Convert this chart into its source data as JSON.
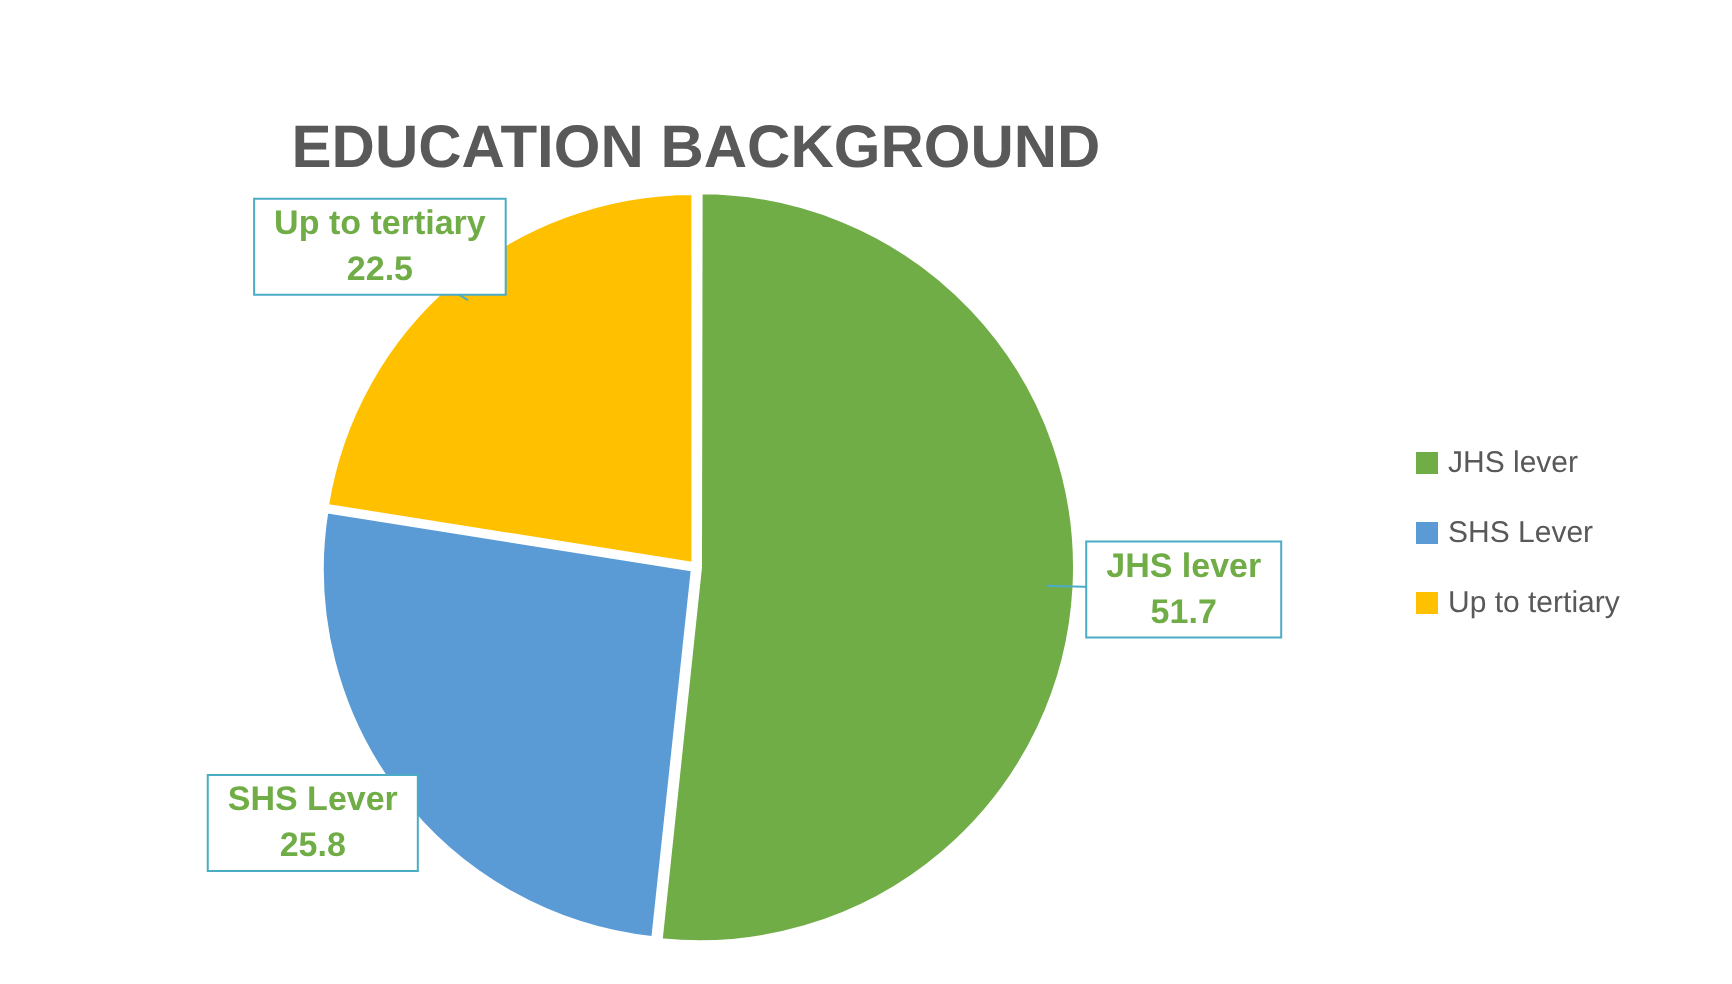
{
  "chart_data": {
    "type": "pie",
    "title": "EDUCATION BACKGROUND",
    "categories": [
      "JHS lever",
      "SHS Lever",
      "Up to tertiary"
    ],
    "values": [
      51.7,
      25.8,
      22.5
    ],
    "colors": [
      "#70ad47",
      "#5b9bd5",
      "#ffc000"
    ],
    "data_labels": true,
    "legend": "right"
  }
}
